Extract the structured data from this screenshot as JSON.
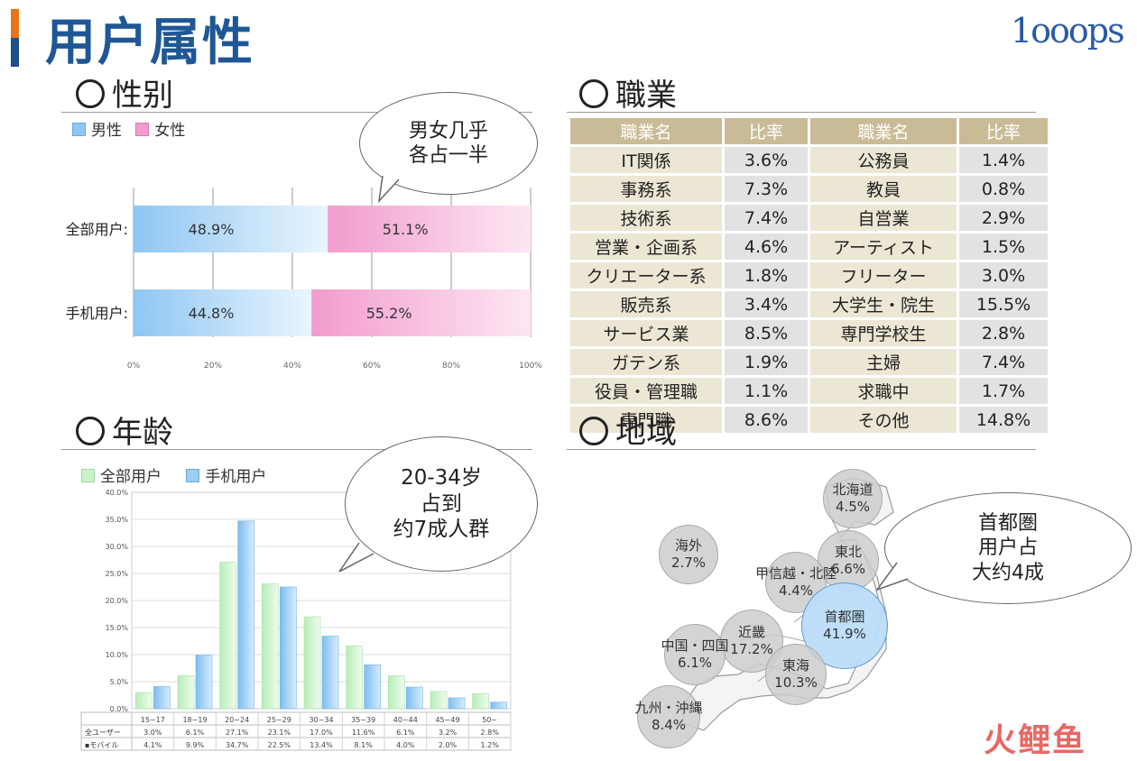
{
  "page_title": "用户属性",
  "logo": "1ooops",
  "watermark": "火鲤鱼",
  "sections": {
    "gender": "性别",
    "occupation": "職業",
    "age": "年龄",
    "region": "地域"
  },
  "gender": {
    "legend": {
      "male": "男性",
      "female": "女性"
    },
    "bubble": "男女几乎\n各占一半",
    "colors": {
      "male": "#8ec6f3",
      "female": "#f29ccd"
    }
  },
  "age": {
    "legend": {
      "all": "全部用户",
      "mobile": "手机用户"
    },
    "bubble": "20-34岁\n占到\n约7成人群",
    "table_row_labels": [
      "全ユーザー",
      "▪モバイル"
    ],
    "colors": {
      "all": "#c9f3c9",
      "mobile": "#9ccdf3"
    }
  },
  "region": {
    "bubble": "首都圏\n用户占\n大约4成",
    "items": [
      {
        "name": "北海道",
        "value": "4.5%"
      },
      {
        "name": "東北",
        "value": "6.6%"
      },
      {
        "name": "海外",
        "value": "2.7%"
      },
      {
        "name": "甲信越・北陸",
        "value": "4.4%"
      },
      {
        "name": "首都圏",
        "value": "41.9%"
      },
      {
        "name": "近畿",
        "value": "17.2%"
      },
      {
        "name": "中国・四国",
        "value": "6.1%"
      },
      {
        "name": "東海",
        "value": "10.3%"
      },
      {
        "name": "九州・沖縄",
        "value": "8.4%"
      }
    ]
  },
  "occupation": {
    "headers": [
      "職業名",
      "比率",
      "職業名",
      "比率"
    ],
    "rows": [
      [
        "IT関係",
        "3.6%",
        "公務員",
        "1.4%"
      ],
      [
        "事務系",
        "7.3%",
        "教員",
        "0.8%"
      ],
      [
        "技術系",
        "7.4%",
        "自営業",
        "2.9%"
      ],
      [
        "営業・企画系",
        "4.6%",
        "アーティスト",
        "1.5%"
      ],
      [
        "クリエーター系",
        "1.8%",
        "フリーター",
        "3.0%"
      ],
      [
        "販売系",
        "3.4%",
        "大学生・院生",
        "15.5%"
      ],
      [
        "サービス業",
        "8.5%",
        "専門学校生",
        "2.8%"
      ],
      [
        "ガテン系",
        "1.9%",
        "主婦",
        "7.4%"
      ],
      [
        "役員・管理職",
        "1.1%",
        "求職中",
        "1.7%"
      ],
      [
        "専門職",
        "8.6%",
        "その他",
        "14.8%"
      ]
    ]
  },
  "chart_data": [
    {
      "type": "bar",
      "orientation": "horizontal",
      "stacked": true,
      "categories": [
        "全部用户:",
        "手机用户:"
      ],
      "series": [
        {
          "name": "男性",
          "values": [
            48.9,
            44.8
          ]
        },
        {
          "name": "女性",
          "values": [
            51.1,
            55.2
          ]
        }
      ],
      "value_labels": [
        [
          "48.9%",
          "44.8%"
        ],
        [
          "51.1%",
          "55.2%"
        ]
      ],
      "xlim": [
        0,
        100
      ],
      "xticks": [
        "0%",
        "20%",
        "40%",
        "60%",
        "80%",
        "100%"
      ],
      "grid": true
    },
    {
      "type": "bar",
      "categories": [
        "15~17",
        "18~19",
        "20~24",
        "25~29",
        "30~34",
        "35~39",
        "40~44",
        "45~49",
        "50~"
      ],
      "series": [
        {
          "name": "全部用户",
          "values": [
            3.0,
            6.1,
            27.1,
            23.1,
            17.0,
            11.6,
            6.1,
            3.2,
            2.8
          ]
        },
        {
          "name": "手机用户",
          "values": [
            4.1,
            9.9,
            34.7,
            22.5,
            13.4,
            8.1,
            4.0,
            2.0,
            1.2
          ]
        }
      ],
      "table_values": [
        [
          "3.0%",
          "6.1%",
          "27.1%",
          "23.1%",
          "17.0%",
          "11.6%",
          "6.1%",
          "3.2%",
          "2.8%"
        ],
        [
          "4.1%",
          "9.9%",
          "34.7%",
          "22.5%",
          "13.4%",
          "8.1%",
          "4.0%",
          "2.0%",
          "1.2%"
        ]
      ],
      "ylim": [
        0,
        40
      ],
      "yticks": [
        "0.0%",
        "5.0%",
        "10.0%",
        "15.0%",
        "20.0%",
        "25.0%",
        "30.0%",
        "35.0%",
        "40.0%"
      ],
      "grid": true
    }
  ]
}
